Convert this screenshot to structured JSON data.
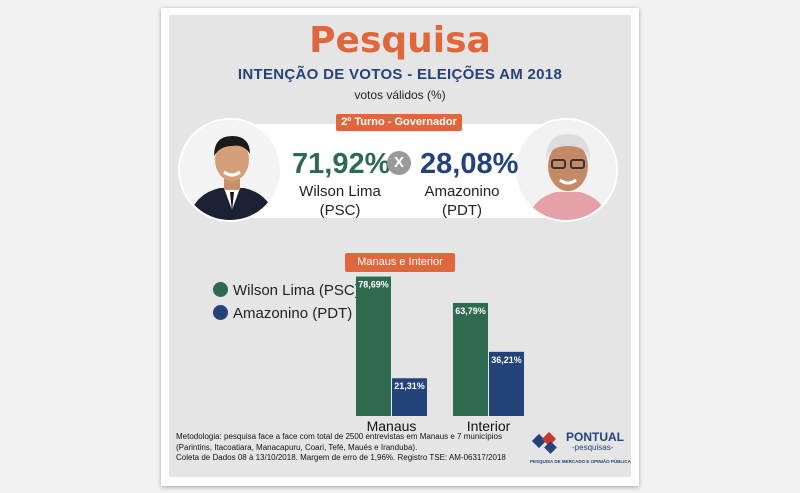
{
  "header": {
    "title": "Pesquisa",
    "subtitle": "INTENÇÃO DE VOTOS - ELEIÇÕES AM 2018",
    "units": "votos válidos (%)"
  },
  "runoff": {
    "badge": "2º Turno - Governador",
    "separator": "X",
    "candidates": [
      {
        "pct": "71,92%",
        "name": "Wilson Lima",
        "party": "(PSC)",
        "color": "#2e6a4f"
      },
      {
        "pct": "28,08%",
        "name": "Amazonino",
        "party": "(PDT)",
        "color": "#23437a"
      }
    ]
  },
  "chart_data": {
    "type": "bar",
    "title": "Manaus e Interior",
    "categories": [
      "Manaus",
      "Interior"
    ],
    "series": [
      {
        "name": "Wilson Lima (PSC)",
        "color": "#2e6a4f",
        "values": [
          78.69,
          63.79
        ],
        "labels": [
          "78,69%",
          "63,79%"
        ]
      },
      {
        "name": "Amazonino (PDT)",
        "color": "#23437a",
        "values": [
          21.31,
          36.21
        ],
        "labels": [
          "21,31%",
          "36,21%"
        ]
      }
    ],
    "ylim": [
      0,
      100
    ],
    "legend": "top-left",
    "grid": false
  },
  "footer": {
    "methodology": [
      "Metodologia: pesquisa face a face com total de 2500 entrevistas em Manaus e 7 municípios",
      "(Parintins, Itacoatiara, Manacapuru, Coari, Tefé, Maués e Iranduba).",
      "Coleta de Dados 08 à 13/10/2018. Margem de erro de 1,96%. Registro TSE: AM-06317/2018"
    ],
    "logo": {
      "name": "PONTUAL",
      "sub": "-pesquisas-",
      "tagline": "PESQUISA DE MERCADO E OPINIÃO PÚBLICA"
    }
  }
}
